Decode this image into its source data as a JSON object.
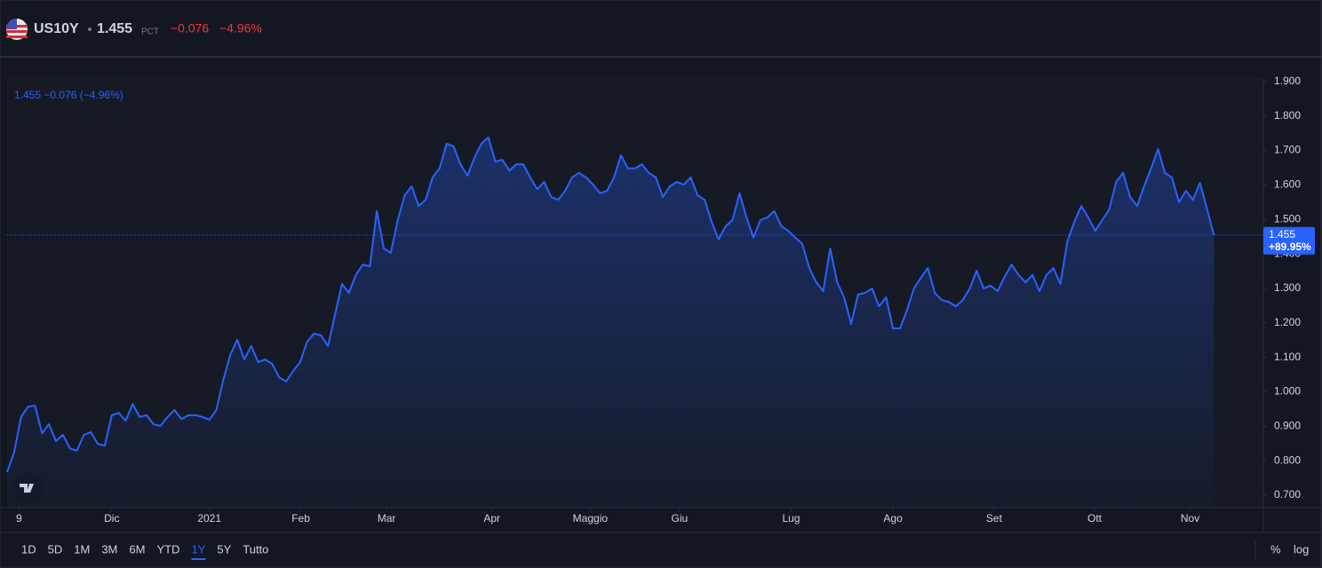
{
  "header": {
    "symbol": "US10Y",
    "price": "1.455",
    "unit": "PCT",
    "change": "−0.076",
    "change_pct": "−4.96%"
  },
  "chart_data": {
    "type": "line",
    "legend": "1.455 −0.076 (−4.96%)",
    "color": "#2962ff",
    "last_label": "1.455",
    "last_change_label": "+89.95%",
    "values": [
      0.767,
      0.824,
      0.927,
      0.957,
      0.96,
      0.88,
      0.906,
      0.857,
      0.875,
      0.836,
      0.829,
      0.875,
      0.883,
      0.849,
      0.844,
      0.932,
      0.939,
      0.916,
      0.965,
      0.927,
      0.932,
      0.906,
      0.901,
      0.927,
      0.947,
      0.921,
      0.932,
      0.932,
      0.927,
      0.919,
      0.947,
      1.035,
      1.107,
      1.151,
      1.094,
      1.133,
      1.086,
      1.094,
      1.081,
      1.042,
      1.03,
      1.06,
      1.086,
      1.145,
      1.169,
      1.164,
      1.133,
      1.223,
      1.313,
      1.287,
      1.339,
      1.369,
      1.364,
      1.524,
      1.416,
      1.403,
      1.498,
      1.57,
      1.596,
      1.539,
      1.557,
      1.622,
      1.648,
      1.72,
      1.712,
      1.66,
      1.627,
      1.679,
      1.72,
      1.738,
      1.668,
      1.673,
      1.642,
      1.66,
      1.66,
      1.622,
      1.588,
      1.609,
      1.565,
      1.557,
      1.583,
      1.622,
      1.635,
      1.622,
      1.601,
      1.576,
      1.583,
      1.622,
      1.686,
      1.648,
      1.648,
      1.66,
      1.635,
      1.622,
      1.565,
      1.596,
      1.609,
      1.601,
      1.622,
      1.57,
      1.557,
      1.493,
      1.442,
      1.48,
      1.498,
      1.576,
      1.506,
      1.447,
      1.498,
      1.506,
      1.524,
      1.48,
      1.467,
      1.447,
      1.429,
      1.359,
      1.318,
      1.292,
      1.416,
      1.318,
      1.274,
      1.197,
      1.282,
      1.287,
      1.3,
      1.248,
      1.274,
      1.184,
      1.184,
      1.236,
      1.3,
      1.331,
      1.359,
      1.287,
      1.266,
      1.261,
      1.248,
      1.266,
      1.3,
      1.351,
      1.3,
      1.308,
      1.292,
      1.333,
      1.369,
      1.339,
      1.318,
      1.339,
      1.292,
      1.339,
      1.359,
      1.313,
      1.436,
      1.493,
      1.539,
      1.506,
      1.467,
      1.498,
      1.529,
      1.609,
      1.635,
      1.565,
      1.539,
      1.596,
      1.648,
      1.704,
      1.635,
      1.622,
      1.55,
      1.583,
      1.557,
      1.606,
      1.532,
      1.455
    ],
    "xlim": [
      0,
      180.1
    ],
    "xticks": [
      {
        "value": 1.7,
        "label": "9"
      },
      {
        "value": 15,
        "label": "Dic"
      },
      {
        "value": 29,
        "label": "2021"
      },
      {
        "value": 42.1,
        "label": "Feb"
      },
      {
        "value": 54.4,
        "label": "Mar"
      },
      {
        "value": 69.5,
        "label": "Apr"
      },
      {
        "value": 83.6,
        "label": "Maggio"
      },
      {
        "value": 96.4,
        "label": "Giu"
      },
      {
        "value": 112.4,
        "label": "Lug"
      },
      {
        "value": 127,
        "label": "Ago"
      },
      {
        "value": 141.5,
        "label": "Set"
      },
      {
        "value": 155.9,
        "label": "Ott"
      },
      {
        "value": 169.6,
        "label": "Nov"
      }
    ],
    "ylim": [
      0.664,
      1.91
    ],
    "yticks": [
      {
        "value": 0.7,
        "label": "0.700"
      },
      {
        "value": 0.8,
        "label": "0.800"
      },
      {
        "value": 0.9,
        "label": "0.900"
      },
      {
        "value": 1.0,
        "label": "1.000"
      },
      {
        "value": 1.1,
        "label": "1.100"
      },
      {
        "value": 1.2,
        "label": "1.200"
      },
      {
        "value": 1.3,
        "label": "1.300"
      },
      {
        "value": 1.4,
        "label": "1.400"
      },
      {
        "value": 1.5,
        "label": "1.500"
      },
      {
        "value": 1.6,
        "label": "1.600"
      },
      {
        "value": 1.7,
        "label": "1.700"
      },
      {
        "value": 1.8,
        "label": "1.800"
      },
      {
        "value": 1.9,
        "label": "1.900"
      }
    ]
  },
  "ranges": [
    "1D",
    "5D",
    "1M",
    "3M",
    "6M",
    "YTD",
    "1Y",
    "5Y",
    "Tutto"
  ],
  "selected_range": "1Y",
  "scale_buttons": [
    "%",
    "log"
  ]
}
